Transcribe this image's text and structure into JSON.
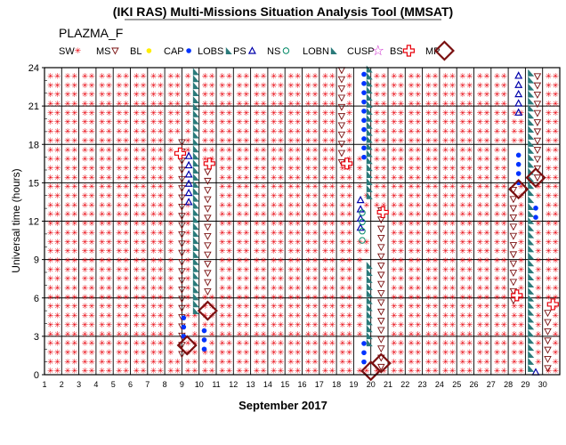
{
  "chart_data": {
    "type": "scatter",
    "title": "(IKI RAS) Multi-Missions Situation Analysis Tool (MMSAT)",
    "subtitle": "PLAZMA_F",
    "xlabel": "September 2017",
    "ylabel": "Universal time (hours)",
    "xlim": [
      1,
      31
    ],
    "ylim": [
      0,
      24
    ],
    "x_ticks": [
      1,
      2,
      3,
      4,
      5,
      6,
      7,
      8,
      9,
      10,
      11,
      12,
      13,
      14,
      15,
      16,
      17,
      18,
      19,
      20,
      21,
      22,
      23,
      24,
      25,
      26,
      27,
      28,
      29,
      30
    ],
    "y_ticks": [
      0,
      3,
      6,
      9,
      12,
      15,
      18,
      21,
      24
    ],
    "grid": true,
    "legend": [
      {
        "label": "SW",
        "marker": "star",
        "color": "#e8000b"
      },
      {
        "label": "MS",
        "marker": "triangle-down",
        "color": "#7a1010"
      },
      {
        "label": "BL",
        "marker": "dot",
        "color": "#ffee00"
      },
      {
        "label": "CAP",
        "marker": "dot",
        "color": "#0033ff"
      },
      {
        "label": "LOBS",
        "marker": "flag",
        "color": "#2a7a7a"
      },
      {
        "label": "PS",
        "marker": "triangle-up",
        "color": "#0000aa"
      },
      {
        "label": "NS",
        "marker": "circle",
        "color": "#008866"
      },
      {
        "label": "LOBN",
        "marker": "flag",
        "color": "#2a7a7a"
      },
      {
        "label": "CUSP",
        "marker": "star-open",
        "color": "#cc22cc"
      },
      {
        "label": "BS",
        "marker": "cross",
        "color": "#e8000b"
      },
      {
        "label": "MP",
        "marker": "diamond",
        "color": "#7a1010"
      }
    ],
    "series": [
      {
        "name": "SW",
        "description_days": "all days outside other regions"
      },
      {
        "name": "MS",
        "intervals": [
          {
            "day": 9,
            "start": 1.6,
            "end": 18.6
          },
          {
            "day": 10.5,
            "start": 6.5,
            "end": 16.2
          },
          {
            "day": 18.3,
            "start": 16.6,
            "end": 24
          },
          {
            "day": 20.6,
            "start": 0.6,
            "end": 12.9
          },
          {
            "day": 28.3,
            "start": 5.8,
            "end": 14.8
          },
          {
            "day": 29.7,
            "start": 15.4,
            "end": 24
          },
          {
            "day": 30.3,
            "start": 0.5,
            "end": 5.5
          }
        ]
      },
      {
        "name": "CAP",
        "intervals": [
          {
            "day": 9.1,
            "start": 3.0,
            "end": 4.6
          },
          {
            "day": 10.3,
            "start": 2.0,
            "end": 3.8
          },
          {
            "day": 19.6,
            "start": 17.0,
            "end": 24
          },
          {
            "day": 19.6,
            "start": 1.0,
            "end": 2.5
          },
          {
            "day": 28.6,
            "start": 15.0,
            "end": 17.8
          },
          {
            "day": 29.6,
            "start": 12.3,
            "end": 13.5
          }
        ]
      },
      {
        "name": "PS",
        "intervals": [
          {
            "day": 9.4,
            "start": 13.5,
            "end": 17.5
          },
          {
            "day": 19.4,
            "start": 11.5,
            "end": 14.0
          },
          {
            "day": 28.6,
            "start": 20.5,
            "end": 23.7
          },
          {
            "day": 29.6,
            "start": 0.2,
            "end": 0.8
          }
        ]
      },
      {
        "name": "NS",
        "intervals": [
          {
            "day": 19.5,
            "start": 10.5,
            "end": 13.0
          }
        ]
      },
      {
        "name": "LOBS",
        "intervals": [
          {
            "day": 9.8,
            "start": 5.0,
            "end": 24
          },
          {
            "day": 19.9,
            "start": 2.5,
            "end": 9.0
          },
          {
            "day": 19.9,
            "start": 14.0,
            "end": 24
          },
          {
            "day": 29.3,
            "start": 0.5,
            "end": 24
          }
        ]
      },
      {
        "name": "BS",
        "points": [
          {
            "day": 8.9,
            "utc": 17.3
          },
          {
            "day": 10.6,
            "utc": 16.5
          },
          {
            "day": 18.6,
            "utc": 16.5
          },
          {
            "day": 20.7,
            "utc": 12.7
          },
          {
            "day": 28.5,
            "utc": 6.2
          },
          {
            "day": 30.6,
            "utc": 5.5
          }
        ]
      },
      {
        "name": "MP",
        "points": [
          {
            "day": 9.3,
            "utc": 2.3
          },
          {
            "day": 10.5,
            "utc": 5.0
          },
          {
            "day": 20.0,
            "utc": 0.3
          },
          {
            "day": 20.6,
            "utc": 0.9
          },
          {
            "day": 28.6,
            "utc": 14.5
          },
          {
            "day": 29.6,
            "utc": 15.4
          }
        ]
      }
    ]
  }
}
